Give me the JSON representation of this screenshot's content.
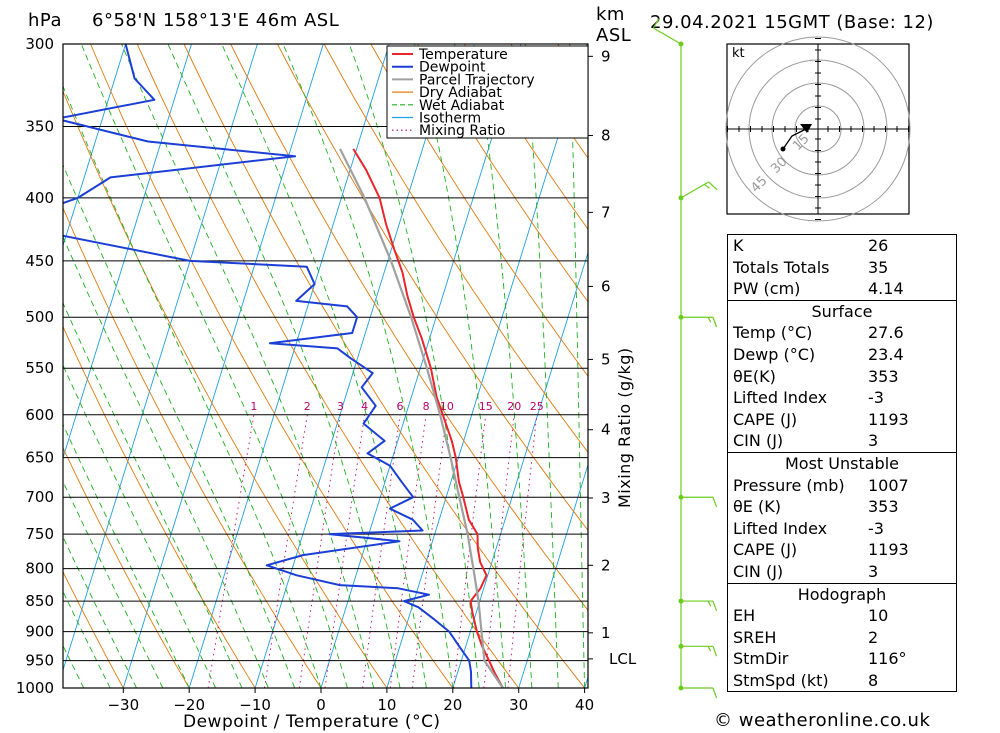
{
  "header": {
    "hpa_unit": "hPa",
    "location": "6°58'N  158°13'E  46m  ASL",
    "km_unit": "km",
    "asl_unit": "ASL",
    "datetime": "29.04.2021  15GMT  (Base: 12)"
  },
  "credit": "© weatheronline.co.uk",
  "chart_data": {
    "type": "line",
    "title": "6°58'N 158°13'E 46m ASL",
    "xlabel": "Dewpoint / Temperature (°C)",
    "ylabel": "hPa",
    "right_label": "Mixing Ratio (g/kg)",
    "y_scale": "log",
    "xlim": [
      -40,
      40
    ],
    "ylim": [
      1000,
      300
    ],
    "skew": "skew-T",
    "pressure_levels": [
      300,
      350,
      400,
      450,
      500,
      550,
      600,
      650,
      700,
      750,
      800,
      850,
      900,
      950,
      1000
    ],
    "temperature_ticks": [
      -30,
      -20,
      -10,
      0,
      10,
      20,
      30,
      40
    ],
    "km_ticks": [
      {
        "label": "1",
        "p": 902
      },
      {
        "label": "2",
        "p": 795
      },
      {
        "label": "3",
        "p": 701
      },
      {
        "label": "4",
        "p": 617
      },
      {
        "label": "5",
        "p": 541
      },
      {
        "label": "6",
        "p": 472
      },
      {
        "label": "7",
        "p": 411
      },
      {
        "label": "8",
        "p": 356
      },
      {
        "label": "9",
        "p": 307
      },
      {
        "label": "LCL",
        "p": 947
      }
    ],
    "mixing_ratio_labels": [
      "1",
      "2",
      "3",
      "4",
      "6",
      "8",
      "10",
      "15",
      "20",
      "25"
    ],
    "mixing_ratio_values": [
      1,
      2,
      3,
      4,
      6,
      8,
      10,
      15,
      20,
      25
    ],
    "legend": [
      "Temperature",
      "Dewpoint",
      "Parcel Trajectory",
      "Dry Adiabat",
      "Wet Adiabat",
      "Isotherm",
      "Mixing Ratio"
    ],
    "legend_position": "top-right",
    "colors": {
      "temperature": "#e8262b",
      "dewpoint": "#1b3fd6",
      "parcel": "#a0a0a0",
      "dry_adiabat": "#e07a10",
      "wet_adiabat": "#1fb01f",
      "isotherm": "#20a0e0",
      "mixing_ratio": "#c0006a",
      "wind": "#6ccc1e"
    },
    "series": [
      {
        "name": "Temperature",
        "points": [
          [
            1000,
            27.6
          ],
          [
            970,
            25.5
          ],
          [
            950,
            24.2
          ],
          [
            925,
            22.5
          ],
          [
            900,
            21.0
          ],
          [
            870,
            19.5
          ],
          [
            850,
            18.6
          ],
          [
            830,
            19.5
          ],
          [
            810,
            19.8
          ],
          [
            790,
            18.2
          ],
          [
            770,
            17.2
          ],
          [
            750,
            16.5
          ],
          [
            730,
            14.5
          ],
          [
            700,
            12.6
          ],
          [
            680,
            11.2
          ],
          [
            650,
            9.6
          ],
          [
            630,
            8.2
          ],
          [
            600,
            5.6
          ],
          [
            580,
            3.8
          ],
          [
            550,
            1.6
          ],
          [
            520,
            -1.2
          ],
          [
            500,
            -3.4
          ],
          [
            480,
            -5.4
          ],
          [
            460,
            -7.2
          ],
          [
            440,
            -9.6
          ],
          [
            420,
            -12.0
          ],
          [
            400,
            -14.2
          ],
          [
            380,
            -17.5
          ],
          [
            365,
            -20.5
          ]
        ]
      },
      {
        "name": "Dewpoint",
        "points": [
          [
            1000,
            22.8
          ],
          [
            970,
            22.0
          ],
          [
            950,
            21.2
          ],
          [
            925,
            19.0
          ],
          [
            900,
            16.8
          ],
          [
            880,
            14.0
          ],
          [
            860,
            11.0
          ],
          [
            850,
            8.5
          ],
          [
            840,
            12.0
          ],
          [
            830,
            7.0
          ],
          [
            825,
            -2.0
          ],
          [
            810,
            -9.0
          ],
          [
            795,
            -14.0
          ],
          [
            780,
            -9.0
          ],
          [
            760,
            5.0
          ],
          [
            750,
            -6.0
          ],
          [
            745,
            8.0
          ],
          [
            730,
            6.0
          ],
          [
            715,
            2.0
          ],
          [
            700,
            5.0
          ],
          [
            680,
            2.5
          ],
          [
            660,
            0.0
          ],
          [
            645,
            -4.0
          ],
          [
            630,
            -2.0
          ],
          [
            610,
            -6.0
          ],
          [
            590,
            -5.0
          ],
          [
            570,
            -8.0
          ],
          [
            555,
            -7.0
          ],
          [
            540,
            -11.0
          ],
          [
            530,
            -13.5
          ],
          [
            525,
            -24.0
          ],
          [
            515,
            -12.0
          ],
          [
            500,
            -12.0
          ],
          [
            490,
            -14.0
          ],
          [
            485,
            -22.0
          ],
          [
            470,
            -20.0
          ],
          [
            455,
            -22.0
          ],
          [
            450,
            -40.0
          ],
          [
            420,
            -70.0
          ],
          [
            400,
            -60.0
          ],
          [
            385,
            -56.0
          ],
          [
            370,
            -29.0
          ],
          [
            360,
            -52.0
          ],
          [
            345,
            -67.0
          ],
          [
            333,
            -53.0
          ],
          [
            320,
            -57.0
          ],
          [
            300,
            -60.0
          ]
        ]
      },
      {
        "name": "Parcel Trajectory",
        "points": [
          [
            1000,
            27.6
          ],
          [
            950,
            23.5
          ],
          [
            900,
            21.7
          ],
          [
            850,
            19.8
          ],
          [
            800,
            17.5
          ],
          [
            750,
            15.0
          ],
          [
            700,
            12.0
          ],
          [
            650,
            8.8
          ],
          [
            600,
            5.2
          ],
          [
            550,
            1.0
          ],
          [
            500,
            -3.8
          ],
          [
            450,
            -9.5
          ],
          [
            400,
            -16.5
          ],
          [
            365,
            -22.5
          ]
        ]
      }
    ],
    "wind_barbs": [
      {
        "p": 1000,
        "dir": "E",
        "kt": 10
      },
      {
        "p": 925,
        "dir": "E",
        "kt": 15
      },
      {
        "p": 850,
        "dir": "E",
        "kt": 15
      },
      {
        "p": 700,
        "dir": "E",
        "kt": 10
      },
      {
        "p": 500,
        "dir": "E",
        "kt": 15
      },
      {
        "p": 400,
        "dir": "NE",
        "kt": 15
      },
      {
        "p": 300,
        "dir": "NW",
        "kt": 10
      }
    ]
  },
  "hodograph": {
    "unit": "kt",
    "ring_labels": [
      "15",
      "30",
      "45"
    ]
  },
  "indices": {
    "rows": [
      {
        "label": "K",
        "value": "26"
      },
      {
        "label": "Totals Totals",
        "value": "35"
      },
      {
        "label": "PW (cm)",
        "value": "4.14"
      }
    ]
  },
  "surface": {
    "title": "Surface",
    "rows": [
      {
        "label": "Temp (°C)",
        "value": "27.6"
      },
      {
        "label": "Dewp (°C)",
        "value": "23.4"
      },
      {
        "label": "θE(K)",
        "value": "353"
      },
      {
        "label": "Lifted Index",
        "value": "-3"
      },
      {
        "label": "CAPE (J)",
        "value": "1193"
      },
      {
        "label": "CIN (J)",
        "value": "3"
      }
    ]
  },
  "most_unstable": {
    "title": "Most Unstable",
    "rows": [
      {
        "label": "Pressure (mb)",
        "value": "1007"
      },
      {
        "label": "θE (K)",
        "value": "353"
      },
      {
        "label": "Lifted Index",
        "value": "-3"
      },
      {
        "label": "CAPE (J)",
        "value": "1193"
      },
      {
        "label": "CIN (J)",
        "value": "3"
      }
    ]
  },
  "hodo_stats": {
    "title": "Hodograph",
    "rows": [
      {
        "label": "EH",
        "value": "10"
      },
      {
        "label": "SREH",
        "value": "2"
      },
      {
        "label": "StmDir",
        "value": "116°"
      },
      {
        "label": "StmSpd (kt)",
        "value": "8"
      }
    ]
  }
}
